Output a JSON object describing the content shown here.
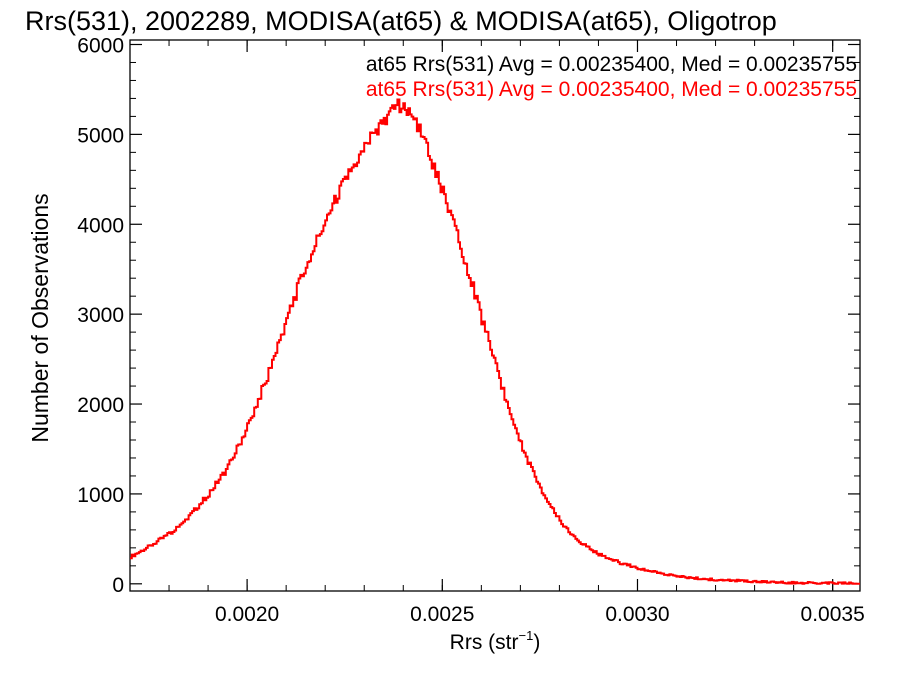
{
  "chart_data": {
    "type": "histogram",
    "title": "Rrs(531), 2002289, MODISA(at65) & MODISA(at65), Oligotrop",
    "xlabel_main": "Rrs (str",
    "xlabel_sup": "−1",
    "xlabel_close": ")",
    "ylabel": "Number of Observations",
    "xlim": [
      0.0017,
      0.00357
    ],
    "ylim": [
      -80,
      6050
    ],
    "x_ticks": [
      0.002,
      0.0025,
      0.003,
      0.0035
    ],
    "x_tick_labels": [
      "0.0020",
      "0.0025",
      "0.0030",
      "0.0035"
    ],
    "y_ticks": [
      0,
      1000,
      2000,
      3000,
      4000,
      5000,
      6000
    ],
    "y_tick_labels": [
      "0",
      "1000",
      "2000",
      "3000",
      "4000",
      "5000",
      "6000"
    ],
    "legend": [
      {
        "text": "at65 Rrs(531) Avg = 0.00235400, Med = 0.00235755",
        "color": "#000000"
      },
      {
        "text": "at65 Rrs(531) Avg = 0.00235400, Med = 0.00235755",
        "color": "#ff0000"
      }
    ],
    "series": [
      {
        "color": "#ff0000",
        "x": [
          0.0017,
          0.00175,
          0.0018,
          0.00185,
          0.0019,
          0.00195,
          0.002,
          0.00205,
          0.0021,
          0.00215,
          0.0022,
          0.00225,
          0.0023,
          0.00232,
          0.00235,
          0.00238,
          0.0024,
          0.00243,
          0.00245,
          0.0025,
          0.00255,
          0.0026,
          0.00265,
          0.0027,
          0.00275,
          0.0028,
          0.00285,
          0.0029,
          0.00295,
          0.003,
          0.00305,
          0.0031,
          0.00315,
          0.0032,
          0.00325,
          0.0033,
          0.00335,
          0.0034,
          0.00345,
          0.0035,
          0.00357
        ],
        "y": [
          300,
          420,
          560,
          750,
          1000,
          1300,
          1750,
          2300,
          2950,
          3550,
          4050,
          4500,
          4850,
          5000,
          5150,
          5350,
          5280,
          5150,
          4950,
          4350,
          3700,
          2950,
          2200,
          1550,
          1050,
          700,
          460,
          330,
          240,
          175,
          120,
          85,
          60,
          45,
          35,
          25,
          18,
          12,
          10,
          7,
          5
        ]
      }
    ]
  }
}
